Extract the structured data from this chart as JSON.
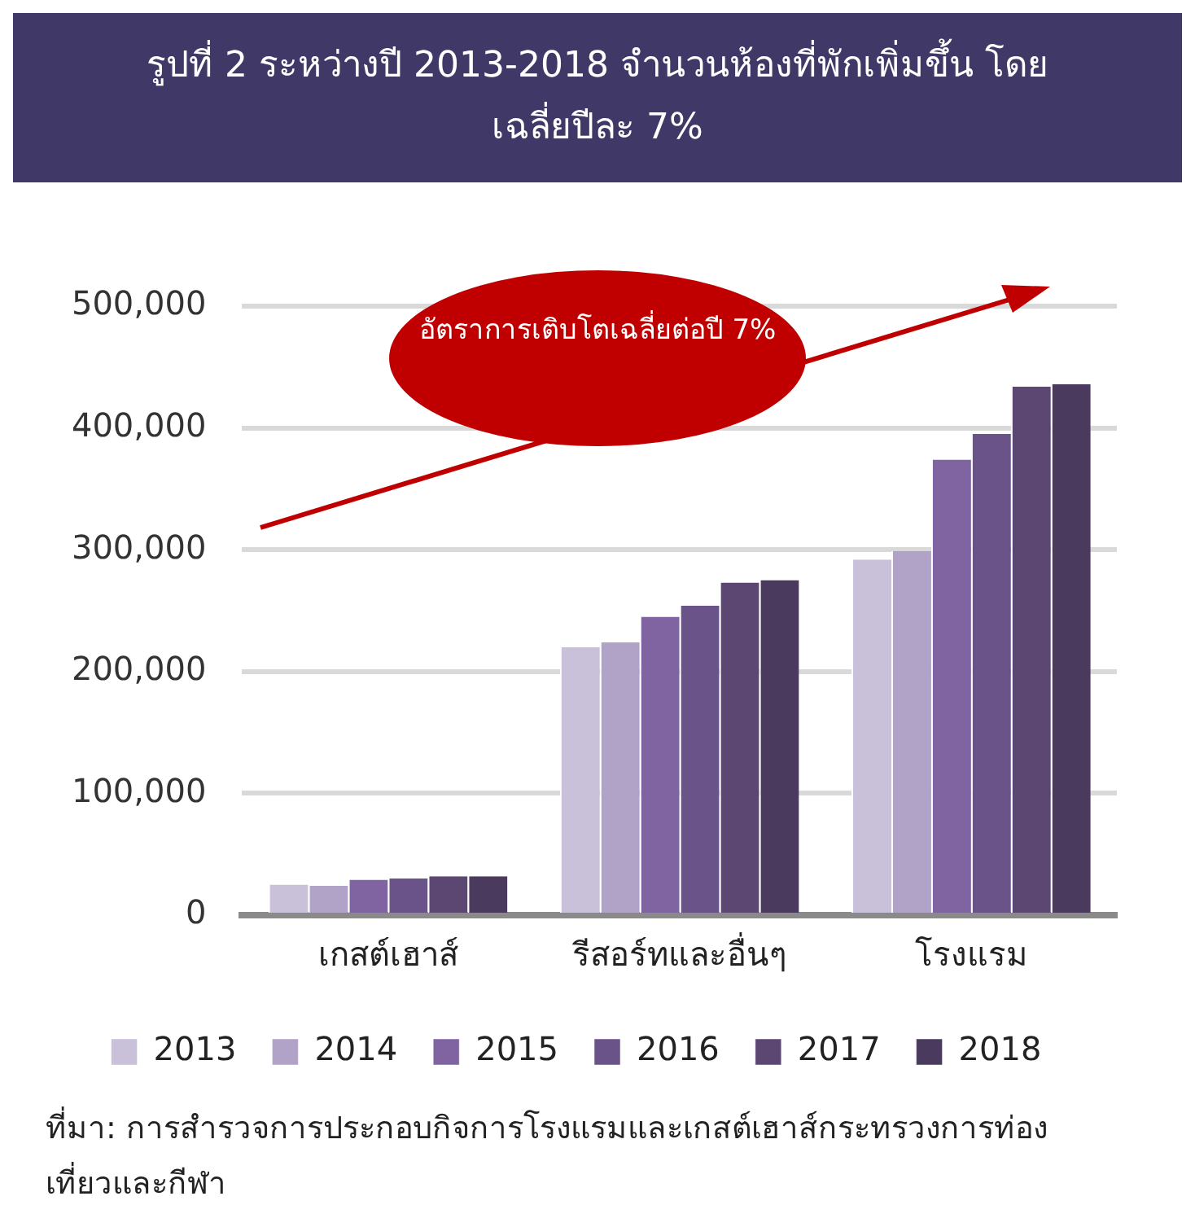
{
  "chart_data": {
    "type": "bar",
    "title": "รูปที่ 2 ระหว่างปี 2013-2018 จำนวนห้องที่พักเพิ่มขึ้น โดยเฉลี่ยปีละ 7%",
    "categories": [
      "เกสต์เฮาส์",
      "รีสอร์ทและอื่นๆ",
      "โรงแรม"
    ],
    "series": [
      {
        "name": "2013",
        "color": "#c9c0da",
        "values": [
          25000,
          220000,
          292000
        ]
      },
      {
        "name": "2014",
        "color": "#b1a3c8",
        "values": [
          24000,
          224000,
          299000
        ]
      },
      {
        "name": "2015",
        "color": "#8064a2",
        "values": [
          29000,
          245000,
          374000
        ]
      },
      {
        "name": "2016",
        "color": "#6a5388",
        "values": [
          30000,
          254000,
          395000
        ]
      },
      {
        "name": "2017",
        "color": "#5c4772",
        "values": [
          32000,
          273000,
          434000
        ]
      },
      {
        "name": "2018",
        "color": "#4a3a5e",
        "values": [
          32000,
          275000,
          436000
        ]
      }
    ],
    "ylim": [
      0,
      500000
    ],
    "yticks": [
      0,
      {
        "value": 100000,
        "label": "100,000"
      },
      {
        "value": 200000,
        "label": "200,000"
      },
      {
        "value": 300000,
        "label": "300,000"
      },
      {
        "value": 400000,
        "label": "400,000"
      },
      {
        "value": 500000,
        "label": "500,000"
      }
    ],
    "grid": "y",
    "legend": "bottom",
    "annotations": [
      "อัตราการเติบโตเฉลี่ยต่อปี 7%",
      "ที่มา: การสำรวจการประกอบกิจการโรงแรมและเกสต์เฮาส์กระทรวงการท่องเที่ยวและกีฬา"
    ]
  }
}
